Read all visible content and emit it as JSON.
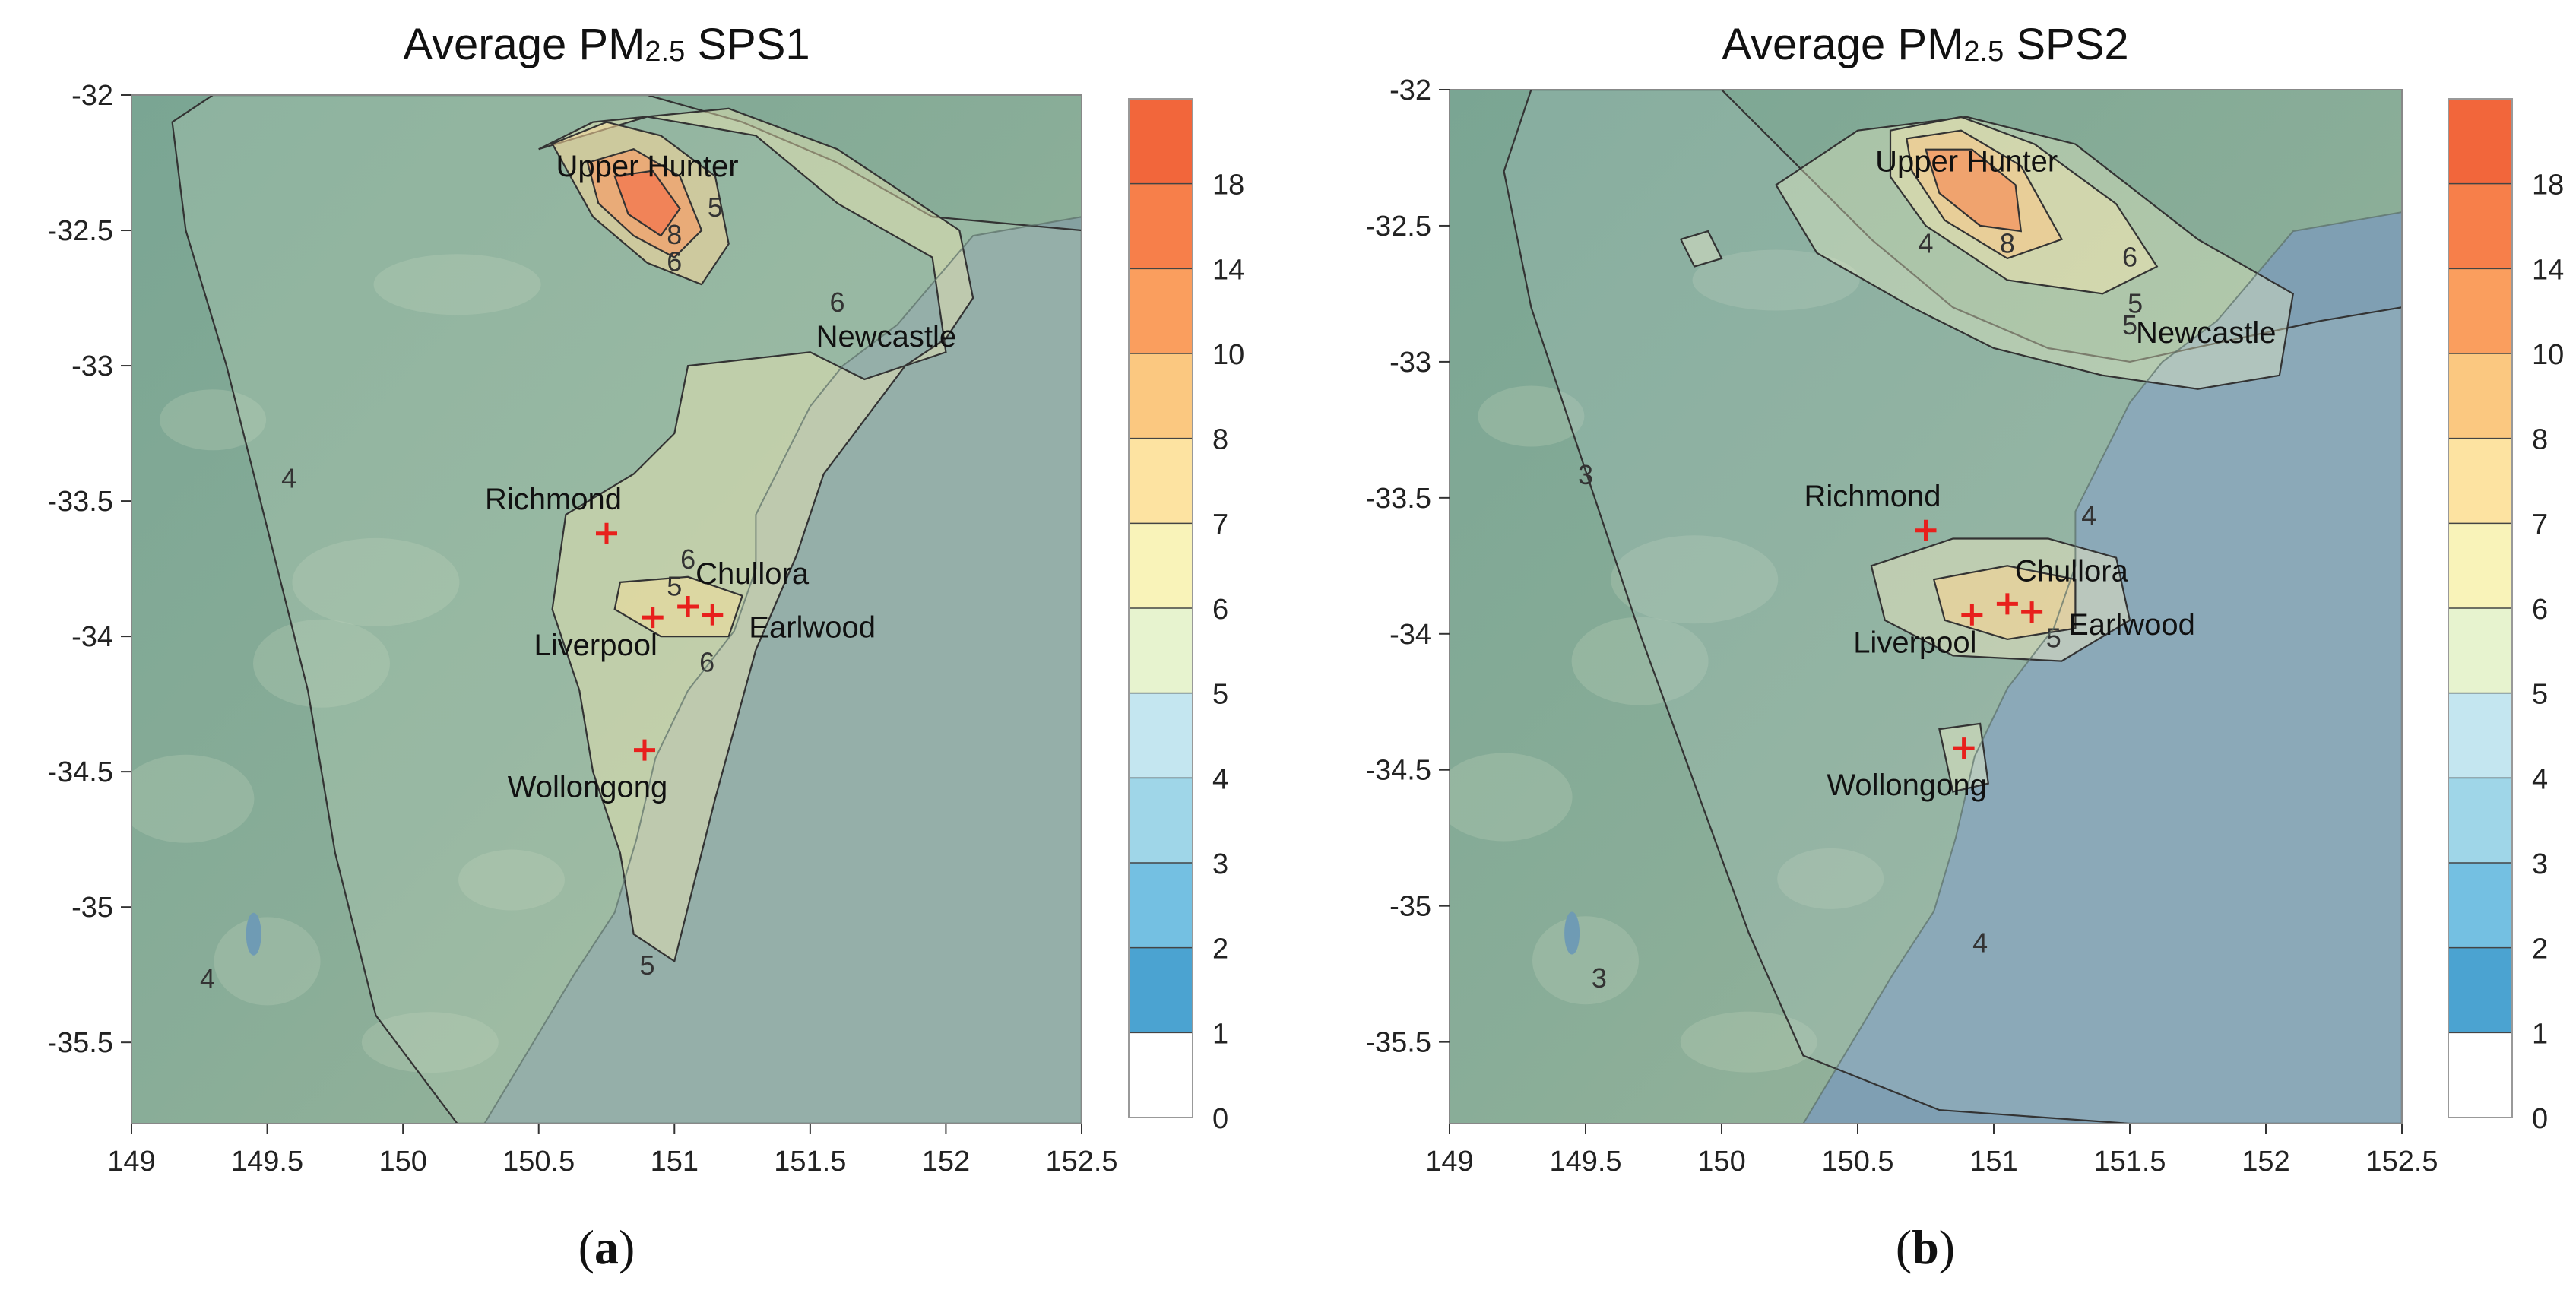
{
  "figure": {
    "panels": [
      {
        "id": "a",
        "title_prefix": "Average PM",
        "title_sub": "2.5",
        "title_suffix": " SPS1",
        "label_open": "(",
        "label_letter": "a",
        "label_close": ")"
      },
      {
        "id": "b",
        "title_prefix": "Average PM",
        "title_sub": "2.5",
        "title_suffix": " SPS2",
        "label_open": "(",
        "label_letter": "b",
        "label_close": ")"
      }
    ]
  },
  "chart_data": [
    {
      "type": "contour map",
      "title": "Average PM2.5 SPS1",
      "panel": "(a)",
      "xlim": [
        149,
        152.5
      ],
      "ylim": [
        -35.8,
        -32
      ],
      "x_ticks": [
        "149",
        "149.5",
        "150",
        "150.5",
        "151",
        "151.5",
        "152",
        "152.5"
      ],
      "y_ticks": [
        "-32",
        "-32.5",
        "-33",
        "-33.5",
        "-34",
        "-34.5",
        "-35",
        "-35.5"
      ],
      "colorbar": {
        "levels": [
          "0",
          "1",
          "2",
          "3",
          "4",
          "5",
          "6",
          "7",
          "8",
          "10",
          "14",
          "18"
        ],
        "colors": [
          "#ffffff",
          "#4ba3d1",
          "#74c0e2",
          "#9fd6e8",
          "#c4e6f0",
          "#e7f3cf",
          "#f9f3b9",
          "#fde3a1",
          "#fbc880",
          "#fa9e5e",
          "#f77f4a",
          "#f2663b"
        ]
      },
      "contour_labels": [
        "4",
        "4",
        "5",
        "5",
        "5",
        "6",
        "6",
        "6",
        "6",
        "8"
      ],
      "sites": [
        {
          "name": "Upper Hunter",
          "lon": 150.9,
          "lat": -32.3,
          "marker": false
        },
        {
          "name": "Newcastle",
          "lon": 151.78,
          "lat": -32.93,
          "marker": false
        },
        {
          "name": "Richmond",
          "lon": 150.75,
          "lat": -33.62,
          "marker": true
        },
        {
          "name": "Chullora",
          "lon": 151.05,
          "lat": -33.89,
          "marker": true
        },
        {
          "name": "Liverpool",
          "lon": 150.92,
          "lat": -33.93,
          "marker": true
        },
        {
          "name": "Earlwood",
          "lon": 151.14,
          "lat": -33.92,
          "marker": true
        },
        {
          "name": "Wollongong",
          "lon": 150.89,
          "lat": -34.42,
          "marker": true
        }
      ]
    },
    {
      "type": "contour map",
      "title": "Average PM2.5 SPS2",
      "panel": "(b)",
      "xlim": [
        149,
        152.5
      ],
      "ylim": [
        -35.8,
        -32
      ],
      "x_ticks": [
        "149",
        "149.5",
        "150",
        "150.5",
        "151",
        "151.5",
        "152",
        "152.5"
      ],
      "y_ticks": [
        "-32",
        "-32.5",
        "-33",
        "-33.5",
        "-34",
        "-34.5",
        "-35",
        "-35.5"
      ],
      "colorbar": {
        "levels": [
          "0",
          "1",
          "2",
          "3",
          "4",
          "5",
          "6",
          "7",
          "8",
          "10",
          "14",
          "18"
        ],
        "colors": [
          "#ffffff",
          "#4ba3d1",
          "#74c0e2",
          "#9fd6e8",
          "#c4e6f0",
          "#e7f3cf",
          "#f9f3b9",
          "#fde3a1",
          "#fbc880",
          "#fa9e5e",
          "#f77f4a",
          "#f2663b"
        ]
      },
      "contour_labels": [
        "3",
        "3",
        "4",
        "4",
        "4",
        "5",
        "5",
        "5",
        "6",
        "8"
      ],
      "sites": [
        {
          "name": "Upper Hunter",
          "lon": 150.9,
          "lat": -32.3,
          "marker": false
        },
        {
          "name": "Newcastle",
          "lon": 151.78,
          "lat": -32.93,
          "marker": false
        },
        {
          "name": "Richmond",
          "lon": 150.75,
          "lat": -33.62,
          "marker": true
        },
        {
          "name": "Chullora",
          "lon": 151.05,
          "lat": -33.89,
          "marker": true
        },
        {
          "name": "Liverpool",
          "lon": 150.92,
          "lat": -33.93,
          "marker": true
        },
        {
          "name": "Earlwood",
          "lon": 151.14,
          "lat": -33.92,
          "marker": true
        },
        {
          "name": "Wollongong",
          "lon": 150.89,
          "lat": -34.42,
          "marker": true
        }
      ]
    }
  ]
}
